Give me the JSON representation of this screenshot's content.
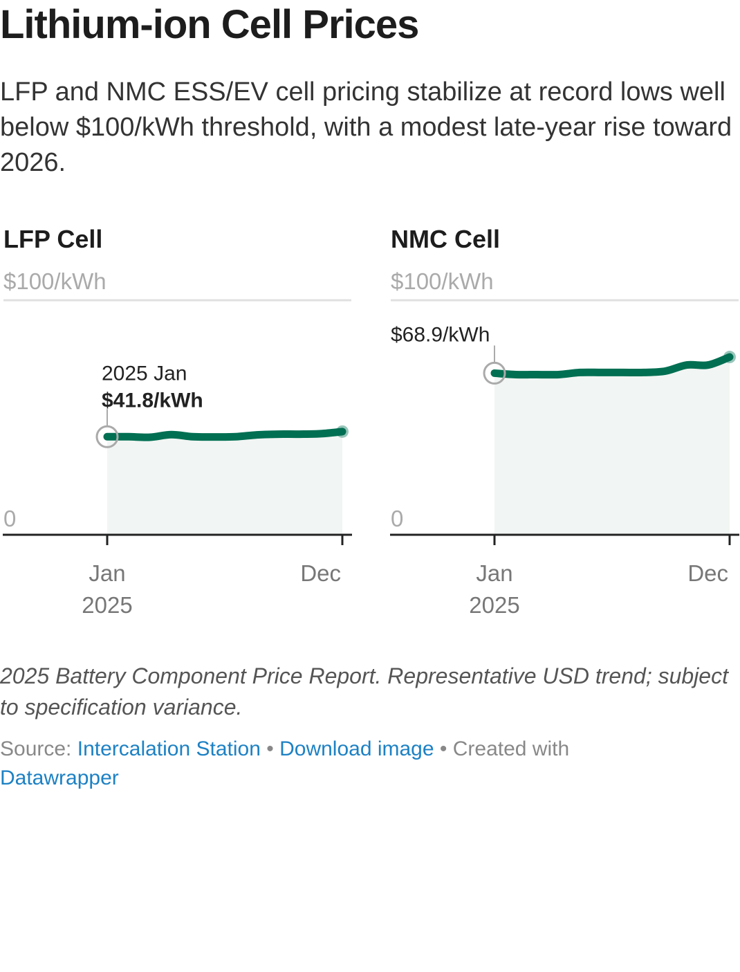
{
  "header": {
    "title": "Lithium-ion Cell Prices",
    "subtitle": "LFP and NMC ESS/EV cell pricing stabilize at record lows well below $100/kWh threshold, with a modest late-year rise toward 2026."
  },
  "chart_data": [
    {
      "type": "area",
      "title": "LFP Cell",
      "x": [
        "Jan 2025",
        "Feb",
        "Mar",
        "Apr",
        "May",
        "Jun",
        "Jul",
        "Aug",
        "Sep",
        "Oct",
        "Nov",
        "Dec"
      ],
      "values": [
        41.8,
        41.8,
        41.6,
        42.7,
        41.8,
        41.7,
        41.8,
        42.6,
        42.9,
        42.9,
        43.1,
        44.0
      ],
      "ylim": [
        0,
        100
      ],
      "yticks": [
        {
          "value": 100,
          "label": "$100/kWh"
        },
        {
          "value": 0,
          "label": "0"
        }
      ],
      "xticks": [
        {
          "index": 0,
          "label": "Jan",
          "sublabel": "2025"
        },
        {
          "index": 11,
          "label": "Dec",
          "sublabel": ""
        }
      ],
      "annotation": {
        "index": 0,
        "line1": "2025 Jan",
        "line2": "$41.8/kWh"
      },
      "color": "#006f52"
    },
    {
      "type": "area",
      "title": "NMC Cell",
      "x": [
        "Jan 2025",
        "Feb",
        "Mar",
        "Apr",
        "May",
        "Jun",
        "Jul",
        "Aug",
        "Sep",
        "Oct",
        "Nov",
        "Dec"
      ],
      "values": [
        68.9,
        68.3,
        68.3,
        68.3,
        69.2,
        69.2,
        69.2,
        69.2,
        69.8,
        72.4,
        72.4,
        75.8
      ],
      "ylim": [
        0,
        100
      ],
      "yticks": [
        {
          "value": 100,
          "label": "$100/kWh"
        },
        {
          "value": 0,
          "label": "0"
        }
      ],
      "xticks": [
        {
          "index": 0,
          "label": "Jan",
          "sublabel": "2025"
        },
        {
          "index": 11,
          "label": "Dec",
          "sublabel": ""
        }
      ],
      "annotation": {
        "index": 0,
        "line1": "",
        "line2": "$68.9/kWh"
      },
      "color": "#006f52"
    }
  ],
  "footer": {
    "notes": "2025 Battery Component Price Report. Representative USD trend; subject to specification variance.",
    "source_label": "Source: ",
    "source_link": "Intercalation Station",
    "sep": " • ",
    "download": "Download image",
    "created": " • Created with ",
    "datawrapper": "Datawrapper"
  }
}
